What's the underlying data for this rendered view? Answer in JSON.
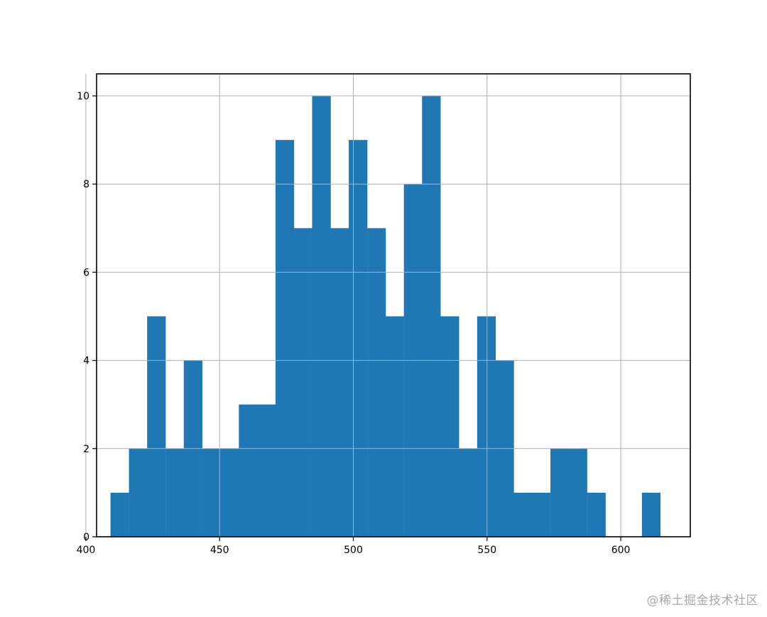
{
  "chart_data": {
    "type": "bar",
    "title": "",
    "xlabel": "",
    "ylabel": "",
    "xlim": [
      404,
      626
    ],
    "ylim": [
      0,
      10.5
    ],
    "grid": true,
    "bar_color": "#1f77b4",
    "bin_width": 6.85,
    "bins": [
      {
        "start": 409.2,
        "count": 1
      },
      {
        "start": 416.1,
        "count": 2
      },
      {
        "start": 422.9,
        "count": 5
      },
      {
        "start": 429.8,
        "count": 2
      },
      {
        "start": 436.6,
        "count": 4
      },
      {
        "start": 443.5,
        "count": 2
      },
      {
        "start": 450.3,
        "count": 2
      },
      {
        "start": 457.2,
        "count": 3
      },
      {
        "start": 464.0,
        "count": 3
      },
      {
        "start": 470.9,
        "count": 9
      },
      {
        "start": 477.7,
        "count": 7
      },
      {
        "start": 484.6,
        "count": 10
      },
      {
        "start": 491.5,
        "count": 7
      },
      {
        "start": 498.3,
        "count": 9
      },
      {
        "start": 505.2,
        "count": 7
      },
      {
        "start": 512.0,
        "count": 5
      },
      {
        "start": 518.9,
        "count": 8
      },
      {
        "start": 525.7,
        "count": 10
      },
      {
        "start": 532.6,
        "count": 5
      },
      {
        "start": 539.4,
        "count": 2
      },
      {
        "start": 546.3,
        "count": 5
      },
      {
        "start": 553.1,
        "count": 4
      },
      {
        "start": 560.0,
        "count": 1
      },
      {
        "start": 566.8,
        "count": 1
      },
      {
        "start": 573.7,
        "count": 2
      },
      {
        "start": 580.5,
        "count": 2
      },
      {
        "start": 587.4,
        "count": 1
      },
      {
        "start": 594.2,
        "count": 0
      },
      {
        "start": 601.1,
        "count": 0
      },
      {
        "start": 607.9,
        "count": 1
      }
    ],
    "x_ticks": [
      400,
      450,
      500,
      550,
      600
    ],
    "y_ticks": [
      0,
      2,
      4,
      6,
      8,
      10
    ]
  },
  "watermark": "@稀土掘金技术社区"
}
